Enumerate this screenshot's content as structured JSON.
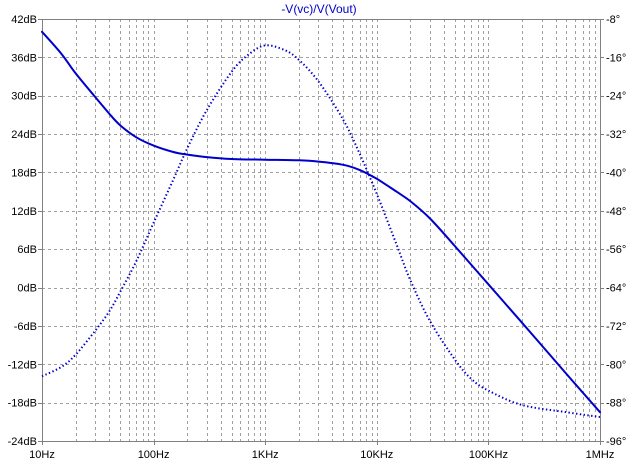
{
  "chart_data": {
    "type": "line",
    "title": "-V(vc)/V(Vout)",
    "x_scale": "log",
    "x_range": [
      10,
      1000000
    ],
    "x_ticks": [
      {
        "value": 10,
        "label": "10Hz"
      },
      {
        "value": 100,
        "label": "100Hz"
      },
      {
        "value": 1000,
        "label": "1KHz"
      },
      {
        "value": 10000,
        "label": "10KHz"
      },
      {
        "value": 100000,
        "label": "100KHz"
      },
      {
        "value": 1000000,
        "label": "1MHz"
      }
    ],
    "y_left": {
      "unit": "dB",
      "range": [
        -24,
        42
      ],
      "ticks": [
        "42dB",
        "36dB",
        "30dB",
        "24dB",
        "18dB",
        "12dB",
        "6dB",
        "0dB",
        "-6dB",
        "-12dB",
        "-18dB",
        "-24dB"
      ],
      "tick_values": [
        42,
        36,
        30,
        24,
        18,
        12,
        6,
        0,
        -6,
        -12,
        -18,
        -24
      ]
    },
    "y_right": {
      "unit": "degrees",
      "range": [
        -96,
        -8
      ],
      "ticks": [
        "-8°",
        "-16°",
        "-24°",
        "-32°",
        "-40°",
        "-48°",
        "-56°",
        "-64°",
        "-72°",
        "-80°",
        "-88°",
        "-96°"
      ],
      "tick_values": [
        -8,
        -16,
        -24,
        -32,
        -40,
        -48,
        -56,
        -64,
        -72,
        -80,
        -88,
        -96
      ]
    },
    "grid": true,
    "colors": {
      "trace": "#0000cc",
      "grid": "#a0a0a0",
      "axis": "#808080",
      "title": "#0000cc"
    },
    "series": [
      {
        "name": "magnitude",
        "axis": "left",
        "style": "solid",
        "points": [
          [
            10,
            40
          ],
          [
            15,
            36.5
          ],
          [
            20,
            33.5
          ],
          [
            30,
            29.8
          ],
          [
            40,
            27.2
          ],
          [
            50,
            25.4
          ],
          [
            70,
            23.5
          ],
          [
            100,
            22.2
          ],
          [
            150,
            21.2
          ],
          [
            200,
            20.8
          ],
          [
            300,
            20.4
          ],
          [
            500,
            20.1
          ],
          [
            1000,
            20.0
          ],
          [
            2000,
            19.9
          ],
          [
            3000,
            19.7
          ],
          [
            5000,
            19.2
          ],
          [
            7000,
            18.4
          ],
          [
            10000,
            17.0
          ],
          [
            15000,
            15.0
          ],
          [
            20000,
            13.5
          ],
          [
            30000,
            10.8
          ],
          [
            50000,
            6.5
          ],
          [
            100000,
            0.5
          ],
          [
            200000,
            -5.5
          ],
          [
            500000,
            -13.5
          ],
          [
            1000000,
            -19.5
          ]
        ]
      },
      {
        "name": "phase",
        "axis": "right",
        "style": "dotted",
        "points": [
          [
            10,
            -82.5
          ],
          [
            15,
            -80.5
          ],
          [
            20,
            -78
          ],
          [
            30,
            -73
          ],
          [
            40,
            -69
          ],
          [
            50,
            -65
          ],
          [
            70,
            -58.5
          ],
          [
            100,
            -50.5
          ],
          [
            150,
            -41.5
          ],
          [
            200,
            -35
          ],
          [
            300,
            -27
          ],
          [
            500,
            -19
          ],
          [
            700,
            -15.5
          ],
          [
            1000,
            -13.5
          ],
          [
            1500,
            -14.5
          ],
          [
            2000,
            -16.5
          ],
          [
            3000,
            -21
          ],
          [
            5000,
            -29
          ],
          [
            7000,
            -36
          ],
          [
            10000,
            -44.5
          ],
          [
            15000,
            -55
          ],
          [
            20000,
            -62.5
          ],
          [
            30000,
            -71
          ],
          [
            50000,
            -79
          ],
          [
            70000,
            -83
          ],
          [
            100000,
            -85.5
          ],
          [
            200000,
            -88.5
          ],
          [
            500000,
            -90
          ],
          [
            1000000,
            -91
          ]
        ]
      }
    ]
  }
}
